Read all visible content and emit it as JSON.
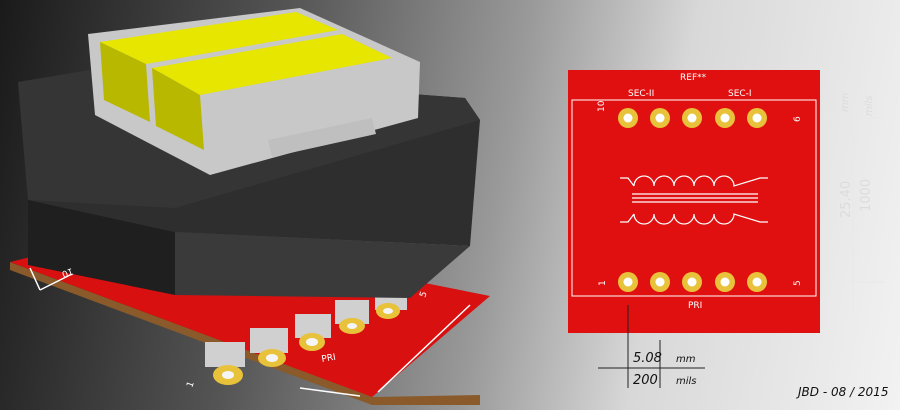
{
  "render3d": {
    "pin_first": "1",
    "pin_last": "5",
    "pin_top": "10",
    "primary_label": "PRI",
    "colors": {
      "board": "#d81010",
      "board_edge": "#8a5a2a",
      "core": "#2e2e2e",
      "bobbin": "#c8c8c8",
      "winding": "#e6e600",
      "pad": "#e8c23a"
    }
  },
  "footprint": {
    "reference": "REF**",
    "secondary_left": "SEC-II",
    "secondary_right": "SEC-I",
    "primary": "PRI",
    "pin_top_left": "10",
    "pin_top_right": "6",
    "pin_bottom_left": "1",
    "pin_bottom_right": "5",
    "colors": {
      "board": "#e01010",
      "outline": "#ffffff",
      "pad_ring": "#e8c23a",
      "pad_hole": "#ffffff"
    }
  },
  "dimensions": {
    "height_mm": "25.40",
    "height_mils": "1000",
    "unit_mm": "mm",
    "unit_mils": "mils",
    "pitch_mm": "5.08",
    "pitch_mils": "200"
  },
  "signature": "JBD - 08 / 2015"
}
